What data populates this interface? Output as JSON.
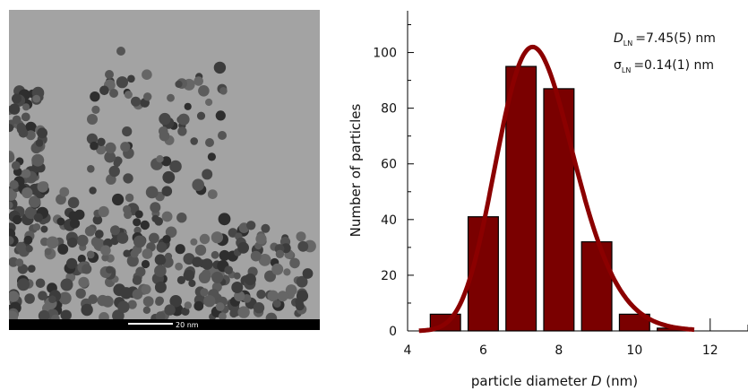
{
  "micrograph": {
    "scale_bar_label": "20 nm"
  },
  "chart_data": {
    "type": "bar",
    "x_centers": [
      5,
      6,
      7,
      8,
      9,
      10,
      11
    ],
    "values": [
      6,
      41,
      95,
      87,
      32,
      6,
      1
    ],
    "bar_color": "#7a0000",
    "fit_curve": {
      "type": "lognormal",
      "color": "#8b0000",
      "peak": [
        7.3,
        102
      ],
      "D_LN": 7.45,
      "sigma_LN": 0.14
    },
    "xlabel_parts": [
      "particle diameter ",
      "D",
      " (nm)"
    ],
    "ylabel": "Number of particles",
    "xlim": [
      4,
      13
    ],
    "ylim": [
      0,
      115
    ],
    "x_ticks": [
      4,
      6,
      8,
      10,
      12
    ],
    "y_ticks": [
      0,
      20,
      40,
      60,
      80,
      100
    ],
    "annotations": {
      "d_symbol": "D",
      "d_sub": "LN",
      "d_value": "=7.45(5) nm",
      "s_symbol": "σ",
      "s_sub": "LN",
      "s_value": "=0.14(1) nm"
    },
    "grid": false,
    "legend": "none"
  }
}
